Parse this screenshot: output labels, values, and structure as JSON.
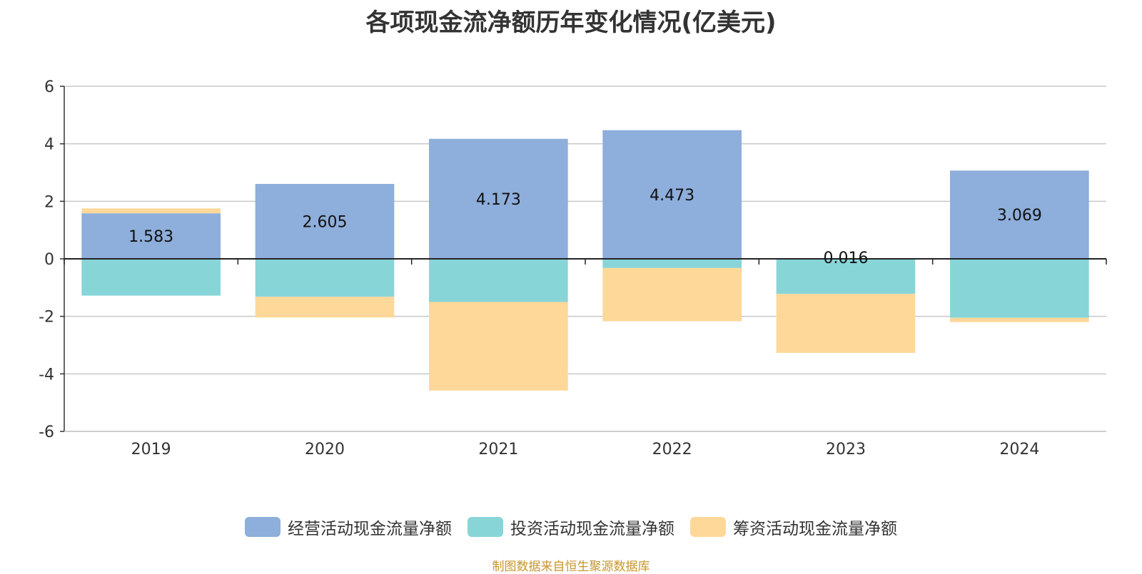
{
  "chart_data": {
    "type": "bar",
    "stacked": true,
    "title": "各项现金流净额历年变化情况(亿美元)",
    "categories": [
      "2019",
      "2020",
      "2021",
      "2022",
      "2023",
      "2024"
    ],
    "ylim": [
      -6,
      6
    ],
    "yticks": [
      6,
      4,
      2,
      0,
      -2,
      -4,
      -6
    ],
    "grid": true,
    "legend_position": "bottom",
    "series": [
      {
        "name": "经营活动现金流量净额",
        "color": "#8eaedb",
        "values": [
          1.583,
          2.605,
          4.173,
          4.473,
          0.016,
          3.069
        ]
      },
      {
        "name": "投资活动现金流量净额",
        "color": "#88d5d8",
        "values": [
          -1.28,
          -1.32,
          -1.5,
          -0.32,
          -1.22,
          -2.05
        ]
      },
      {
        "name": "筹资活动现金流量净额",
        "color": "#fed899",
        "values": [
          0.17,
          -0.72,
          -3.08,
          -1.85,
          -2.05,
          -0.15
        ]
      }
    ],
    "data_labels": [
      "1.583",
      "2.605",
      "4.173",
      "4.473",
      "0.016",
      "3.069"
    ]
  },
  "source_note": "制图数据来自恒生聚源数据库"
}
